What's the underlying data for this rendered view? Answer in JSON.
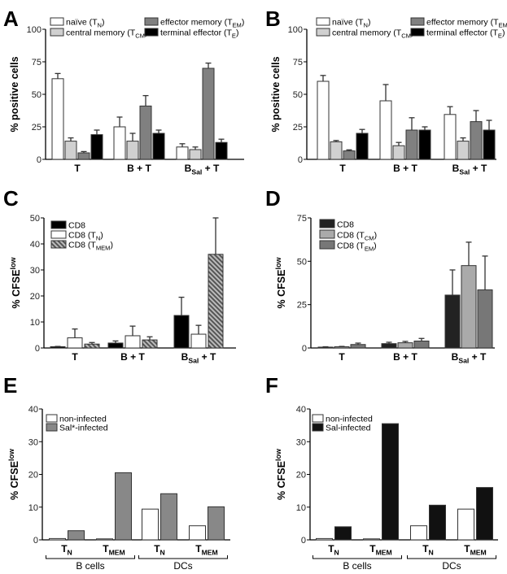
{
  "figure": {
    "chart_data": [
      {
        "panel": "A",
        "type": "bar",
        "ylabel": "% positive cells",
        "ylim": [
          0,
          100
        ],
        "yticks": [
          0,
          25,
          50,
          75,
          100
        ],
        "categories": [
          "T",
          "B + T",
          "B{Sal} + T"
        ],
        "legend_placement": "top",
        "series": [
          {
            "name": "naïve (T{N})",
            "color": "#ffffff",
            "values": [
              62,
              25,
              9.5
            ],
            "errors": [
              4,
              7.5,
              2.5
            ]
          },
          {
            "name": "central memory (T{CM})",
            "color": "#d0d0d0",
            "values": [
              14,
              14,
              7.5
            ],
            "errors": [
              2.5,
              6,
              2
            ]
          },
          {
            "name": "effector memory (T{EM})",
            "color": "#808080",
            "values": [
              5,
              41,
              70
            ],
            "errors": [
              1,
              8,
              4
            ]
          },
          {
            "name": "terminal effector (T{E})",
            "color": "#000000",
            "values": [
              19,
              20,
              13
            ],
            "errors": [
              3.5,
              2.5,
              2.5
            ]
          }
        ]
      },
      {
        "panel": "B",
        "type": "bar",
        "ylabel": "% positive cells",
        "ylim": [
          0,
          100
        ],
        "yticks": [
          0,
          25,
          50,
          75,
          100
        ],
        "categories": [
          "T",
          "B + T",
          "B{Sal} + T"
        ],
        "legend_placement": "top",
        "series": [
          {
            "name": "naïve (T{N})",
            "color": "#ffffff",
            "values": [
              60,
              45,
              34.5
            ],
            "errors": [
              4.5,
              12.5,
              6
            ]
          },
          {
            "name": "central memory (T{CM})",
            "color": "#d0d0d0",
            "values": [
              13.5,
              10.5,
              14
            ],
            "errors": [
              1,
              2.5,
              2.5
            ]
          },
          {
            "name": "effector memory (T{EM})",
            "color": "#808080",
            "values": [
              6.5,
              22.5,
              29
            ],
            "errors": [
              0.8,
              9.5,
              8.5
            ]
          },
          {
            "name": "terminal effector (T{E})",
            "color": "#000000",
            "values": [
              20,
              22.5,
              22.5
            ],
            "errors": [
              3,
              2.5,
              7.5
            ]
          }
        ]
      },
      {
        "panel": "C",
        "type": "bar",
        "ylabel": "% CFSE^{low}",
        "ylim": [
          0,
          50
        ],
        "yticks": [
          0,
          10,
          20,
          30,
          40,
          50
        ],
        "categories": [
          "T",
          "B + T",
          "B{Sal} + T"
        ],
        "legend_placement": "top-left",
        "series": [
          {
            "name": "CD8",
            "color": "#000000",
            "values": [
              0.5,
              1.9,
              12.5
            ],
            "errors": [
              0.1,
              0.8,
              7
            ]
          },
          {
            "name": "CD8 (T{N})",
            "color": "#ffffff",
            "values": [
              3.9,
              4.7,
              5.3
            ],
            "errors": [
              3.4,
              3.7,
              3.4
            ]
          },
          {
            "name": "CD8 (T{MEM})",
            "color": "hatch",
            "values": [
              1.5,
              3.1,
              36
            ],
            "errors": [
              0.6,
              1.2,
              14
            ]
          }
        ]
      },
      {
        "panel": "D",
        "type": "bar",
        "ylabel": "% CFSE^{low}",
        "ylim": [
          0,
          75
        ],
        "yticks": [
          0,
          25,
          50,
          75
        ],
        "categories": [
          "T",
          "B + T",
          "B{Sal} + T"
        ],
        "legend_placement": "top-left",
        "series": [
          {
            "name": "CD8",
            "color": "#222222",
            "values": [
              0.5,
              2.5,
              30.5
            ],
            "errors": [
              0.2,
              0.8,
              14.5
            ]
          },
          {
            "name": "CD8 (T{CM})",
            "color": "#aaaaaa",
            "values": [
              0.7,
              3,
              47.5
            ],
            "errors": [
              0.2,
              0.8,
              13.5
            ]
          },
          {
            "name": "CD8 (T{EM})",
            "color": "#777777",
            "values": [
              2,
              4,
              33.5
            ],
            "errors": [
              0.8,
              1.5,
              19.5
            ]
          }
        ]
      },
      {
        "panel": "E",
        "type": "bar",
        "ylabel": "% CFSE^{low}",
        "ylim": [
          0,
          40
        ],
        "yticks": [
          0,
          10,
          20,
          30,
          40
        ],
        "categories": [
          "T{N}",
          "T{MEM}",
          "T{N}",
          "T{MEM}"
        ],
        "groups": [
          {
            "label": "B cells",
            "span": [
              0,
              1
            ]
          },
          {
            "label": "DCs",
            "span": [
              2,
              3
            ]
          }
        ],
        "legend_placement": "top-left",
        "series": [
          {
            "name": "non-infected",
            "color": "#ffffff",
            "values": [
              0.4,
              0.3,
              9.4,
              4.3
            ]
          },
          {
            "name": "Sal*-infected",
            "color": "#888888",
            "values": [
              2.8,
              20.5,
              14.1,
              10.1
            ]
          }
        ]
      },
      {
        "panel": "F",
        "type": "bar",
        "ylabel": "% CFSE^{low}",
        "ylim": [
          0,
          40
        ],
        "yticks": [
          0,
          10,
          20,
          30,
          40
        ],
        "categories": [
          "T{N}",
          "T{MEM}",
          "T{N}",
          "T{MEM}"
        ],
        "groups": [
          {
            "label": "B cells",
            "span": [
              0,
              1
            ]
          },
          {
            "label": "DCs",
            "span": [
              2,
              3
            ]
          }
        ],
        "legend_placement": "top-left",
        "series": [
          {
            "name": "non-infected",
            "color": "#ffffff",
            "values": [
              0.4,
              0.3,
              4.3,
              9.4
            ]
          },
          {
            "name": "Sal-infected",
            "color": "#111111",
            "values": [
              4,
              35.5,
              10.6,
              16
            ]
          }
        ]
      }
    ]
  }
}
